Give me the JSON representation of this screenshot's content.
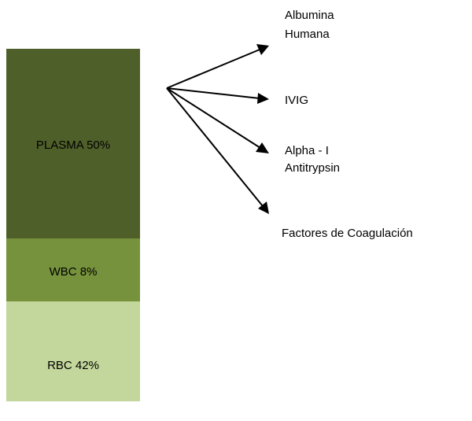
{
  "segments": [
    {
      "label": "PLASMA 50%"
    },
    {
      "label": "WBC 8%"
    },
    {
      "label": "RBC 42%"
    }
  ],
  "products": [
    {
      "lines": [
        "Albumina",
        "Humana"
      ]
    },
    {
      "lines": [
        "IVIG"
      ]
    },
    {
      "lines": [
        "Alpha - I",
        "Antitrypsin"
      ]
    },
    {
      "lines": [
        "Factores de Coagulación"
      ]
    }
  ]
}
